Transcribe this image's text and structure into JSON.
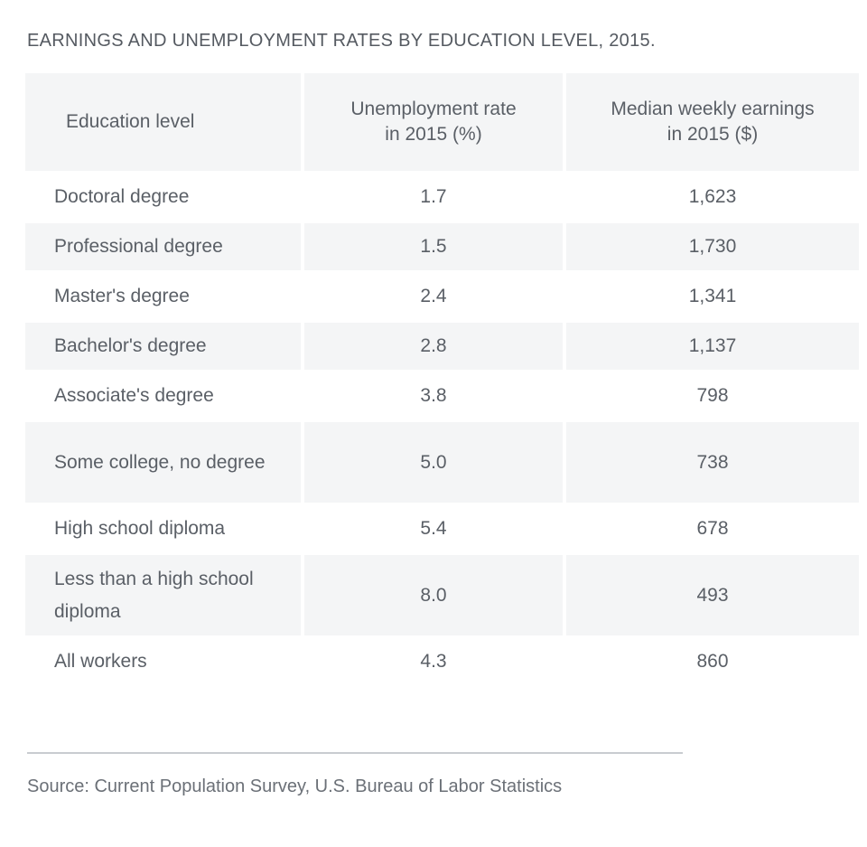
{
  "chart_data": {
    "type": "table",
    "title": "EARNINGS AND UNEMPLOYMENT RATES BY EDUCATION LEVEL, 2015.",
    "columns": [
      "Education level",
      "Unemployment rate in 2015 (%)",
      "Median weekly earnings in 2015 ($)"
    ],
    "header": {
      "col1": "Education level",
      "col2_line1": "Unemployment rate",
      "col2_line2": "in 2015 (%)",
      "col3_line1": "Median weekly earnings",
      "col3_line2": "in 2015 ($)"
    },
    "rows": [
      {
        "level": "Doctoral degree",
        "unemployment": "1.7",
        "earnings": "1,623"
      },
      {
        "level": "Professional degree",
        "unemployment": "1.5",
        "earnings": "1,730"
      },
      {
        "level": "Master's degree",
        "unemployment": "2.4",
        "earnings": "1,341"
      },
      {
        "level": "Bachelor's degree",
        "unemployment": "2.8",
        "earnings": "1,137"
      },
      {
        "level": "Associate's degree",
        "unemployment": "3.8",
        "earnings": "798"
      },
      {
        "level": "Some college, no degree",
        "unemployment": "5.0",
        "earnings": "738"
      },
      {
        "level": "High school diploma",
        "unemployment": "5.4",
        "earnings": "678"
      },
      {
        "level": "Less than a high school diploma",
        "unemployment": "8.0",
        "earnings": "493"
      },
      {
        "level": "All workers",
        "unemployment": "4.3",
        "earnings": "860"
      }
    ],
    "unemployment_values": [
      1.7,
      1.5,
      2.4,
      2.8,
      3.8,
      5.0,
      5.4,
      8.0,
      4.3
    ],
    "earnings_values": [
      1623,
      1730,
      1341,
      1137,
      798,
      738,
      678,
      493,
      860
    ]
  },
  "source": "Source: Current Population Survey, U.S. Bureau of Labor Statistics",
  "colors": {
    "text": "#5a5f66",
    "stripe": "#f4f5f6",
    "rule": "#c9ccd0"
  }
}
